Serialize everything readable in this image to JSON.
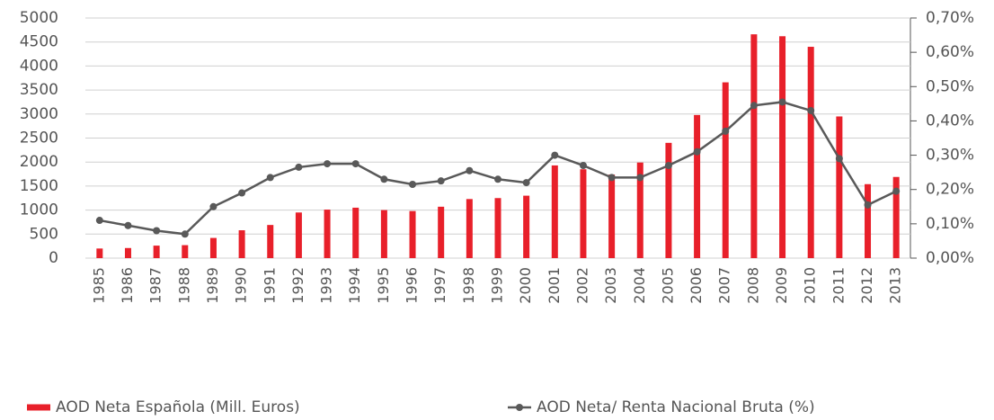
{
  "chart_data": {
    "type": "bar_line",
    "categories": [
      "1985",
      "1986",
      "1987",
      "1988",
      "1989",
      "1990",
      "1991",
      "1992",
      "1993",
      "1994",
      "1995",
      "1996",
      "1997",
      "1998",
      "1999",
      "2000",
      "2001",
      "2002",
      "2003",
      "2004",
      "2005",
      "2006",
      "2007",
      "2008",
      "2009",
      "2010",
      "2011",
      "2012",
      "2013"
    ],
    "series": [
      {
        "name": "AOD Neta Española (Mill. Euros)",
        "type": "bar",
        "color": "#e8202a",
        "values": [
          200,
          210,
          260,
          270,
          420,
          580,
          690,
          950,
          1010,
          1050,
          1000,
          980,
          1070,
          1230,
          1250,
          1300,
          1930,
          1850,
          1740,
          1990,
          2400,
          2980,
          3660,
          4660,
          4620,
          4400,
          2950,
          1540,
          1690
        ]
      },
      {
        "name": "AOD Neta/ Renta Nacional Bruta (%)",
        "type": "line",
        "axis": "y2",
        "color": "#595959",
        "values": [
          0.11,
          0.095,
          0.08,
          0.07,
          0.15,
          0.19,
          0.235,
          0.265,
          0.275,
          0.275,
          0.23,
          0.215,
          0.225,
          0.255,
          0.23,
          0.22,
          0.3,
          0.27,
          0.235,
          0.235,
          0.27,
          0.31,
          0.37,
          0.445,
          0.455,
          0.43,
          0.29,
          0.155,
          0.195
        ]
      }
    ],
    "ylim": [
      0,
      5000
    ],
    "yticks": [
      0,
      500,
      1000,
      1500,
      2000,
      2500,
      3000,
      3500,
      4000,
      4500,
      5000
    ],
    "y2lim": [
      0,
      0.7
    ],
    "y2ticks": [
      {
        "value": 0,
        "label": "0,00%"
      },
      {
        "value": 0.1,
        "label": "0,10%"
      },
      {
        "value": 0.2,
        "label": "0,20%"
      },
      {
        "value": 0.3,
        "label": "0,30%"
      },
      {
        "value": 0.4,
        "label": "0,40%"
      },
      {
        "value": 0.5,
        "label": "0,50%"
      },
      {
        "value": 0.6,
        "label": "0,60%"
      },
      {
        "value": 0.7,
        "label": "0,70%"
      }
    ],
    "grid": true,
    "legend": "bottom"
  }
}
